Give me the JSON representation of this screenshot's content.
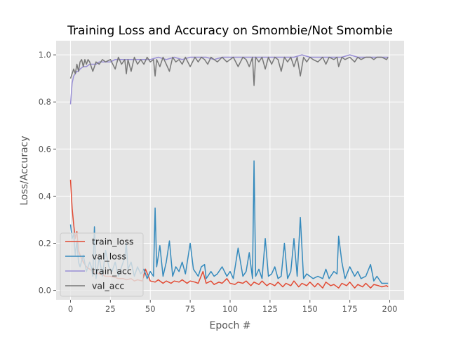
{
  "chart_data": {
    "type": "line",
    "title": "Training Loss and Accuracy on Smombie/Not Smombie",
    "xlabel": "Epoch #",
    "ylabel": "Loss/Accuracy",
    "xlim": [
      -9,
      209
    ],
    "ylim": [
      -0.04,
      1.06
    ],
    "x_ticks": [
      0,
      25,
      50,
      75,
      100,
      125,
      150,
      175,
      200
    ],
    "y_ticks": [
      0.0,
      0.2,
      0.4,
      0.6,
      0.8,
      1.0
    ],
    "y_tick_labels": [
      "0.0",
      "0.2",
      "0.4",
      "0.6",
      "0.8",
      "1.0"
    ],
    "grid": true,
    "legend_position": "lower-left",
    "colors": {
      "plot_background": "#e5e5e5",
      "grid": "#ffffff",
      "train_loss": "#e24a33",
      "val_loss": "#348abd",
      "train_acc": "#988ed5",
      "val_acc": "#777777"
    },
    "series": [
      {
        "name": "train_loss",
        "x": [
          0,
          1,
          2,
          3,
          4,
          5,
          6,
          8,
          10,
          12,
          14,
          16,
          18,
          20,
          22,
          25,
          28,
          30,
          33,
          35,
          38,
          40,
          42,
          45,
          47,
          50,
          53,
          55,
          58,
          60,
          63,
          65,
          68,
          70,
          73,
          75,
          78,
          80,
          83,
          85,
          88,
          90,
          93,
          95,
          98,
          100,
          103,
          105,
          108,
          110,
          113,
          115,
          118,
          120,
          123,
          125,
          128,
          130,
          133,
          135,
          138,
          140,
          143,
          145,
          148,
          150,
          153,
          155,
          158,
          160,
          163,
          165,
          168,
          170,
          173,
          175,
          178,
          180,
          183,
          185,
          188,
          190,
          193,
          195,
          198,
          199
        ],
        "values": [
          0.47,
          0.35,
          0.28,
          0.22,
          0.25,
          0.17,
          0.15,
          0.12,
          0.1,
          0.09,
          0.08,
          0.075,
          0.07,
          0.065,
          0.06,
          0.06,
          0.055,
          0.05,
          0.05,
          0.045,
          0.05,
          0.04,
          0.045,
          0.04,
          0.09,
          0.04,
          0.035,
          0.045,
          0.03,
          0.04,
          0.03,
          0.04,
          0.035,
          0.045,
          0.03,
          0.04,
          0.035,
          0.03,
          0.08,
          0.03,
          0.04,
          0.025,
          0.035,
          0.03,
          0.05,
          0.03,
          0.025,
          0.035,
          0.03,
          0.04,
          0.02,
          0.035,
          0.025,
          0.04,
          0.02,
          0.03,
          0.02,
          0.035,
          0.015,
          0.03,
          0.02,
          0.04,
          0.015,
          0.03,
          0.02,
          0.035,
          0.015,
          0.03,
          0.01,
          0.035,
          0.02,
          0.025,
          0.01,
          0.03,
          0.02,
          0.035,
          0.01,
          0.025,
          0.015,
          0.03,
          0.01,
          0.025,
          0.02,
          0.015,
          0.02,
          0.015
        ]
      },
      {
        "name": "val_loss",
        "x": [
          0,
          1,
          2,
          3,
          4,
          5,
          6,
          8,
          10,
          12,
          13,
          14,
          15,
          16,
          18,
          20,
          22,
          24,
          26,
          28,
          30,
          32,
          34,
          35,
          36,
          38,
          40,
          42,
          44,
          46,
          48,
          50,
          52,
          53,
          54,
          56,
          58,
          60,
          62,
          64,
          66,
          68,
          70,
          72,
          75,
          77,
          80,
          82,
          84,
          85,
          88,
          90,
          92,
          95,
          98,
          100,
          102,
          105,
          108,
          110,
          112,
          114,
          115,
          116,
          118,
          120,
          122,
          124,
          126,
          128,
          130,
          132,
          134,
          136,
          138,
          140,
          142,
          144,
          146,
          148,
          150,
          152,
          155,
          158,
          160,
          162,
          165,
          167,
          168,
          170,
          172,
          175,
          178,
          180,
          182,
          185,
          188,
          190,
          192,
          195,
          198,
          199
        ],
        "values": [
          0.28,
          0.22,
          0.24,
          0.15,
          0.21,
          0.12,
          0.1,
          0.15,
          0.08,
          0.12,
          0.1,
          0.06,
          0.27,
          0.05,
          0.14,
          0.06,
          0.17,
          0.1,
          0.08,
          0.12,
          0.06,
          0.1,
          0.14,
          0.2,
          0.09,
          0.12,
          0.06,
          0.1,
          0.07,
          0.09,
          0.05,
          0.08,
          0.06,
          0.35,
          0.1,
          0.19,
          0.06,
          0.12,
          0.21,
          0.06,
          0.1,
          0.08,
          0.12,
          0.07,
          0.2,
          0.09,
          0.06,
          0.1,
          0.11,
          0.05,
          0.08,
          0.06,
          0.07,
          0.1,
          0.06,
          0.08,
          0.05,
          0.18,
          0.06,
          0.08,
          0.16,
          0.05,
          0.55,
          0.06,
          0.09,
          0.05,
          0.22,
          0.06,
          0.07,
          0.1,
          0.05,
          0.06,
          0.2,
          0.05,
          0.08,
          0.22,
          0.06,
          0.31,
          0.05,
          0.07,
          0.06,
          0.05,
          0.06,
          0.05,
          0.09,
          0.05,
          0.08,
          0.07,
          0.23,
          0.12,
          0.05,
          0.1,
          0.06,
          0.08,
          0.05,
          0.06,
          0.11,
          0.04,
          0.06,
          0.03,
          0.03,
          0.03
        ]
      },
      {
        "name": "train_acc",
        "x": [
          0,
          1,
          2,
          3,
          4,
          5,
          6,
          8,
          10,
          12,
          14,
          16,
          18,
          20,
          22,
          25,
          28,
          30,
          35,
          40,
          45,
          50,
          55,
          60,
          65,
          70,
          75,
          80,
          85,
          90,
          95,
          100,
          105,
          110,
          115,
          120,
          125,
          130,
          135,
          140,
          145,
          150,
          155,
          160,
          165,
          170,
          175,
          180,
          185,
          190,
          195,
          199
        ],
        "values": [
          0.79,
          0.88,
          0.91,
          0.92,
          0.93,
          0.93,
          0.94,
          0.95,
          0.95,
          0.96,
          0.96,
          0.96,
          0.97,
          0.97,
          0.97,
          0.97,
          0.98,
          0.98,
          0.98,
          0.98,
          0.98,
          0.98,
          0.99,
          0.98,
          0.99,
          0.98,
          0.99,
          0.99,
          0.99,
          0.98,
          0.99,
          0.99,
          0.99,
          0.99,
          0.99,
          0.99,
          0.99,
          0.99,
          0.99,
          0.99,
          1.0,
          0.99,
          0.99,
          0.99,
          0.99,
          0.99,
          1.0,
          0.99,
          0.99,
          0.99,
          0.99,
          0.99
        ]
      },
      {
        "name": "val_acc",
        "x": [
          0,
          1,
          2,
          3,
          4,
          5,
          6,
          7,
          8,
          9,
          10,
          11,
          12,
          14,
          16,
          18,
          20,
          22,
          25,
          28,
          30,
          32,
          34,
          35,
          36,
          38,
          40,
          42,
          44,
          46,
          48,
          50,
          52,
          53,
          54,
          56,
          58,
          60,
          62,
          64,
          66,
          68,
          70,
          72,
          75,
          78,
          80,
          82,
          84,
          86,
          88,
          90,
          92,
          95,
          98,
          100,
          102,
          105,
          108,
          110,
          112,
          114,
          115,
          116,
          118,
          120,
          122,
          124,
          126,
          128,
          130,
          132,
          134,
          136,
          138,
          140,
          142,
          144,
          146,
          148,
          150,
          152,
          155,
          158,
          160,
          162,
          165,
          167,
          168,
          170,
          172,
          175,
          178,
          180,
          182,
          185,
          188,
          190,
          192,
          195,
          198,
          199
        ],
        "values": [
          0.9,
          0.92,
          0.94,
          0.92,
          0.96,
          0.93,
          0.97,
          0.98,
          0.95,
          0.98,
          0.96,
          0.98,
          0.97,
          0.93,
          0.97,
          0.96,
          0.98,
          0.97,
          0.98,
          0.94,
          0.99,
          0.96,
          0.98,
          0.92,
          0.98,
          0.93,
          0.99,
          0.96,
          0.98,
          0.96,
          0.99,
          0.97,
          0.98,
          0.91,
          0.98,
          0.95,
          0.99,
          0.96,
          0.93,
          0.99,
          0.97,
          0.98,
          0.96,
          0.99,
          0.95,
          0.99,
          0.97,
          0.99,
          0.98,
          0.96,
          0.99,
          0.98,
          0.97,
          0.99,
          0.97,
          0.98,
          0.99,
          0.95,
          0.99,
          0.98,
          0.95,
          0.99,
          0.87,
          0.99,
          0.97,
          0.99,
          0.94,
          0.99,
          0.96,
          0.99,
          0.98,
          0.93,
          0.99,
          0.97,
          0.99,
          0.95,
          0.99,
          0.91,
          0.99,
          0.97,
          0.99,
          0.98,
          0.97,
          0.99,
          0.96,
          0.99,
          0.98,
          0.99,
          0.95,
          0.99,
          0.98,
          0.99,
          0.97,
          0.99,
          0.98,
          0.99,
          0.99,
          0.98,
          0.99,
          0.99,
          0.98,
          0.99
        ]
      }
    ]
  }
}
